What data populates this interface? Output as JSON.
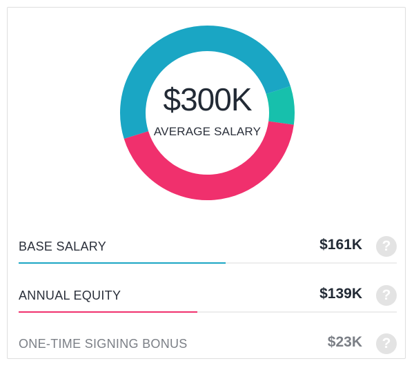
{
  "summary": {
    "total_value": "$300K",
    "total_label": "AVERAGE SALARY"
  },
  "colors": {
    "base": "#1aa6c4",
    "equity": "#f0306d",
    "bonus": "#17c0ac"
  },
  "components": [
    {
      "label": "BASE SALARY",
      "value": "$161K",
      "amount": 161,
      "help_icon": "question-circle-icon",
      "help_glyph": "?"
    },
    {
      "label": "ANNUAL EQUITY",
      "value": "$139K",
      "amount": 139,
      "help_icon": "question-circle-icon",
      "help_glyph": "?"
    },
    {
      "label": "ONE-TIME SIGNING BONUS",
      "value": "$23K",
      "amount": 23,
      "help_icon": "question-circle-icon",
      "help_glyph": "?"
    }
  ]
}
